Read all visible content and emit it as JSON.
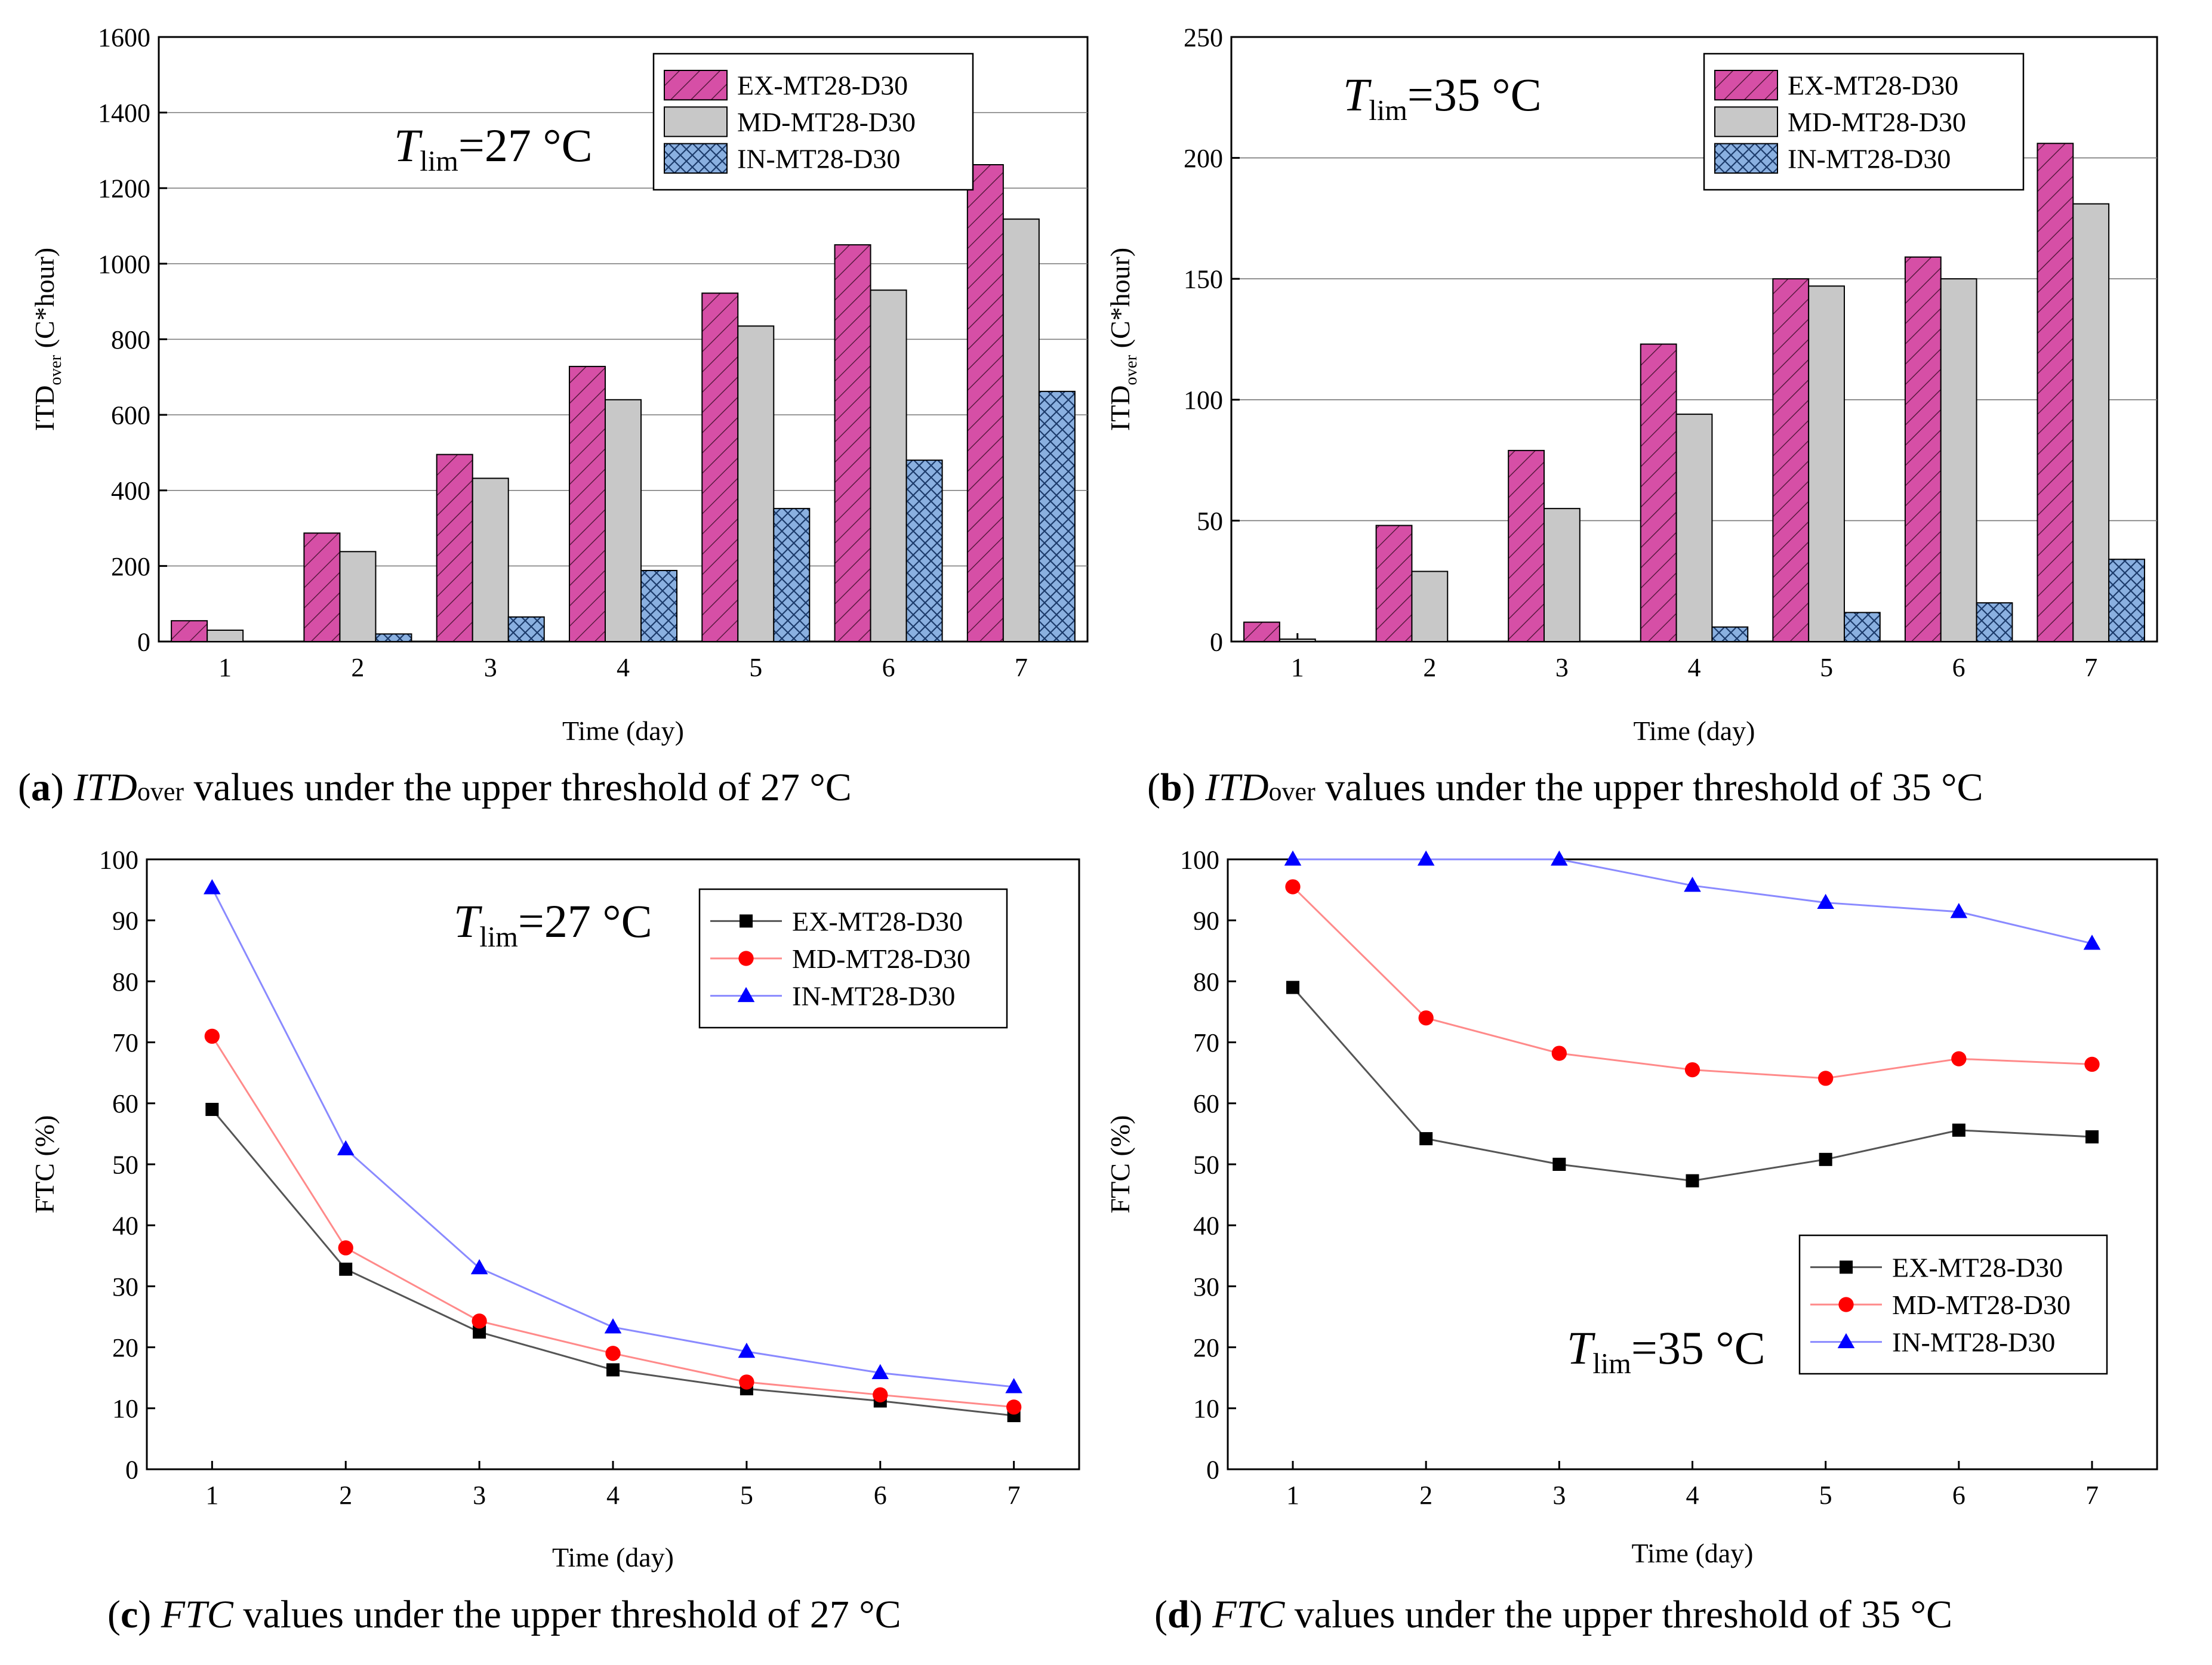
{
  "legend_colors": {
    "ex_bar": "#d64fa6",
    "md_bar": "#c8c8c8",
    "in_bar": "#8ab0e0",
    "ex_line": "#000000",
    "md_line": "#ff0000",
    "in_line": "#0000ff"
  },
  "captions": {
    "a": {
      "letter": "a",
      "pre": "",
      "metric": "ITD",
      "sub": "over",
      "post": " values under the upper threshold of 27 °C"
    },
    "b": {
      "letter": "b",
      "pre": "",
      "metric": "ITD",
      "sub": "over",
      "post": " values under the upper threshold of 35 °C"
    },
    "c": {
      "letter": "c",
      "pre": "",
      "metric": "FTC",
      "sub": "",
      "post": " values under the upper threshold of 27 °C"
    },
    "d": {
      "letter": "d",
      "pre": "",
      "metric": "FTC",
      "sub": "",
      "post": " values under the upper threshold of 35 °C"
    }
  },
  "chart_data": [
    {
      "id": "a",
      "type": "bar",
      "annotation": {
        "T": "T",
        "sub": "lim",
        "rest": "=27 °C"
      },
      "xlabel": "Time (day)",
      "ylabel": {
        "main": "ITD",
        "sub": "over",
        "rest": " (C*hour)"
      },
      "categories": [
        "1",
        "2",
        "3",
        "4",
        "5",
        "6",
        "7"
      ],
      "ylim": [
        0,
        1600
      ],
      "yticks": [
        "0",
        "200",
        "400",
        "600",
        "800",
        "1000",
        "1200",
        "1400",
        "1600"
      ],
      "grid": true,
      "legend": "top-right",
      "series": [
        {
          "name": "EX-MT28-D30",
          "values": [
            55,
            287,
            495,
            728,
            922,
            1050,
            1262
          ]
        },
        {
          "name": "MD-MT28-D30",
          "values": [
            30,
            238,
            432,
            640,
            835,
            930,
            1118
          ]
        },
        {
          "name": "IN-MT28-D30",
          "values": [
            0,
            20,
            65,
            188,
            352,
            480,
            662
          ]
        }
      ]
    },
    {
      "id": "b",
      "type": "bar",
      "annotation": {
        "T": "T",
        "sub": "lim",
        "rest": "=35 °C"
      },
      "xlabel": "Time (day)",
      "ylabel": {
        "main": "ITD",
        "sub": "over",
        "rest": " (C*hour)"
      },
      "categories": [
        "1",
        "2",
        "3",
        "4",
        "5",
        "6",
        "7"
      ],
      "ylim": [
        0,
        250
      ],
      "yticks": [
        "0",
        "50",
        "100",
        "150",
        "200",
        "250"
      ],
      "grid": true,
      "legend": "top-right",
      "series": [
        {
          "name": "EX-MT28-D30",
          "values": [
            8,
            48,
            79,
            123,
            150,
            159,
            206
          ]
        },
        {
          "name": "MD-MT28-D30",
          "values": [
            1,
            29,
            55,
            94,
            147,
            150,
            181
          ]
        },
        {
          "name": "IN-MT28-D30",
          "values": [
            0,
            0,
            0,
            6,
            12,
            16,
            34
          ]
        }
      ]
    },
    {
      "id": "c",
      "type": "line",
      "annotation": {
        "T": "T",
        "sub": "lim",
        "rest": "=27 °C"
      },
      "xlabel": "Time (day)",
      "ylabel": {
        "main": "FTC (%)",
        "sub": "",
        "rest": ""
      },
      "categories": [
        "1",
        "2",
        "3",
        "4",
        "5",
        "6",
        "7"
      ],
      "ylim": [
        0,
        100
      ],
      "yticks": [
        "0",
        "10",
        "20",
        "30",
        "40",
        "50",
        "60",
        "70",
        "80",
        "90",
        "100"
      ],
      "grid": false,
      "legend": "top-right",
      "series": [
        {
          "name": "EX-MT28-D30",
          "values": [
            59,
            32.8,
            22.5,
            16.3,
            13.2,
            11.2,
            8.8
          ]
        },
        {
          "name": "MD-MT28-D30",
          "values": [
            71,
            36.3,
            24.3,
            19,
            14.3,
            12.2,
            10.2
          ]
        },
        {
          "name": "IN-MT28-D30",
          "values": [
            95.3,
            52.5,
            33,
            23.3,
            19.3,
            15.8,
            13.5
          ]
        }
      ]
    },
    {
      "id": "d",
      "type": "line",
      "annotation": {
        "T": "T",
        "sub": "lim",
        "rest": "=35 °C"
      },
      "xlabel": "Time (day)",
      "ylabel": {
        "main": "FTC (%)",
        "sub": "",
        "rest": ""
      },
      "categories": [
        "1",
        "2",
        "3",
        "4",
        "5",
        "6",
        "7"
      ],
      "ylim": [
        0,
        100
      ],
      "yticks": [
        "0",
        "10",
        "20",
        "30",
        "40",
        "50",
        "60",
        "70",
        "80",
        "90",
        "100"
      ],
      "grid": false,
      "legend": "bottom-right",
      "series": [
        {
          "name": "EX-MT28-D30",
          "values": [
            79,
            54.2,
            50,
            47.3,
            50.8,
            55.6,
            54.5
          ]
        },
        {
          "name": "MD-MT28-D30",
          "values": [
            95.5,
            74,
            68.2,
            65.5,
            64.1,
            67.3,
            66.4
          ]
        },
        {
          "name": "IN-MT28-D30",
          "values": [
            100,
            100,
            100,
            95.7,
            92.9,
            91.4,
            86.2
          ]
        }
      ]
    }
  ]
}
